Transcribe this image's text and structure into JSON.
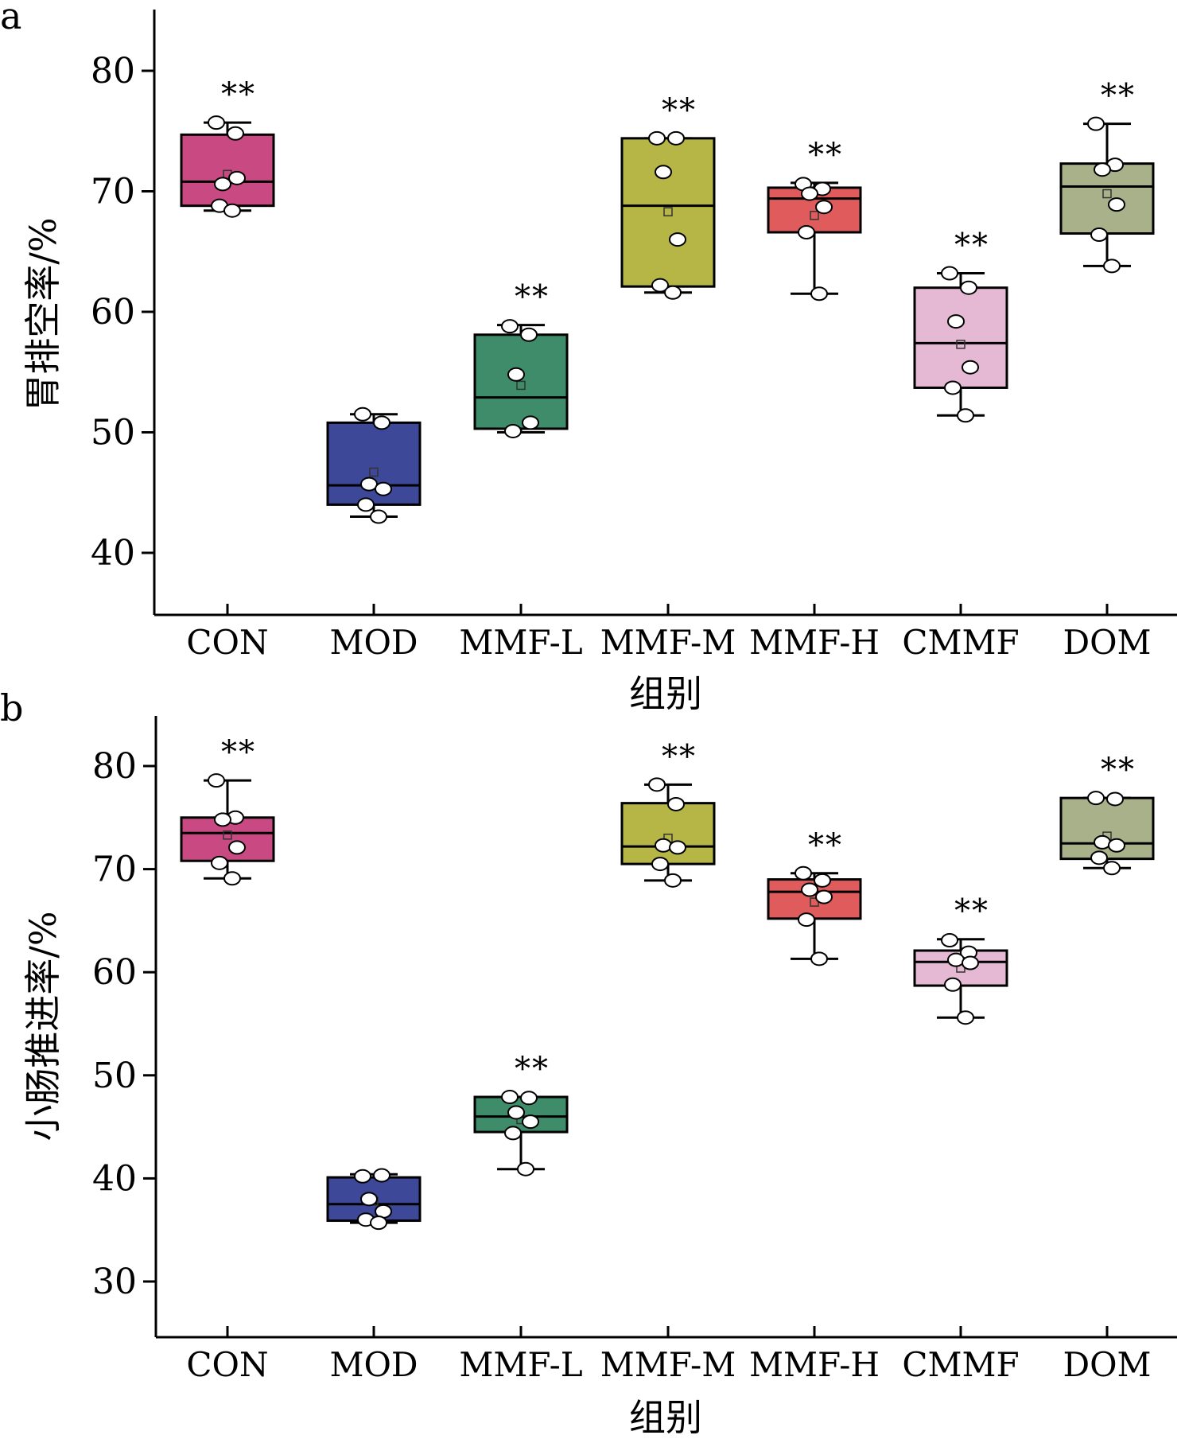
{
  "chart_data": [
    {
      "type": "box",
      "panel_label": "a",
      "xlabel": "组别",
      "ylabel": "胃排空率/%",
      "ylim": [
        35,
        85
      ],
      "yticks": [
        40,
        50,
        60,
        70,
        80
      ],
      "grid": false,
      "categories": [
        "CON",
        "MOD",
        "MMF-L",
        "MMF-M",
        "MMF-H",
        "CMMF",
        "DOM"
      ],
      "groups": [
        {
          "name": "CON",
          "color": "#c94a82",
          "whisker_low": 68.4,
          "q1": 68.8,
          "median": 70.8,
          "q3": 74.7,
          "whisker_high": 75.7,
          "mean": 71.4,
          "points": [
            75.7,
            74.8,
            70.6,
            71.1,
            68.8,
            68.4
          ],
          "sig": "**"
        },
        {
          "name": "MOD",
          "color": "#3d4899",
          "whisker_low": 43.0,
          "q1": 44.0,
          "median": 45.6,
          "q3": 50.8,
          "whisker_high": 51.5,
          "mean": 46.7,
          "points": [
            51.5,
            50.8,
            45.7,
            45.3,
            44.0,
            43.0
          ],
          "sig": ""
        },
        {
          "name": "MMF-L",
          "color": "#3f8c6b",
          "whisker_low": 50.0,
          "q1": 50.3,
          "median": 52.9,
          "q3": 58.1,
          "whisker_high": 58.9,
          "mean": 53.9,
          "points": [
            58.8,
            58.1,
            54.8,
            50.8,
            50.1
          ],
          "sig": "**"
        },
        {
          "name": "MMF-M",
          "color": "#b5b646",
          "whisker_low": 61.6,
          "q1": 62.1,
          "median": 68.8,
          "q3": 74.4,
          "whisker_high": 74.4,
          "mean": 68.3,
          "points": [
            74.4,
            74.4,
            71.6,
            66.0,
            62.2,
            61.6
          ],
          "sig": "**"
        },
        {
          "name": "MMF-H",
          "color": "#e05c5c",
          "whisker_low": 61.5,
          "q1": 66.6,
          "median": 69.4,
          "q3": 70.3,
          "whisker_high": 70.7,
          "mean": 68.0,
          "points": [
            70.6,
            70.2,
            69.8,
            68.7,
            66.6,
            61.5
          ],
          "sig": "**"
        },
        {
          "name": "CMMF",
          "color": "#e5b8d4",
          "whisker_low": 51.4,
          "q1": 53.7,
          "median": 57.4,
          "q3": 62.0,
          "whisker_high": 63.2,
          "mean": 57.3,
          "points": [
            63.2,
            62.0,
            59.2,
            55.4,
            53.7,
            51.4
          ],
          "sig": "**"
        },
        {
          "name": "DOM",
          "color": "#a9b18b",
          "whisker_low": 63.8,
          "q1": 66.5,
          "median": 70.4,
          "q3": 72.3,
          "whisker_high": 75.6,
          "mean": 69.8,
          "points": [
            75.6,
            72.2,
            71.8,
            68.9,
            66.4,
            63.8
          ],
          "sig": "**"
        }
      ]
    },
    {
      "type": "box",
      "panel_label": "b",
      "xlabel": "组别",
      "ylabel": "小肠推进率/%",
      "ylim": [
        25,
        85
      ],
      "yticks": [
        30,
        40,
        50,
        60,
        70,
        80
      ],
      "grid": false,
      "categories": [
        "CON",
        "MOD",
        "MMF-L",
        "MMF-M",
        "MMF-H",
        "CMMF",
        "DOM"
      ],
      "groups": [
        {
          "name": "CON",
          "color": "#c94a82",
          "whisker_low": 69.1,
          "q1": 70.8,
          "median": 73.5,
          "q3": 75.0,
          "whisker_high": 78.6,
          "mean": 73.3,
          "points": [
            78.6,
            75.0,
            74.8,
            72.1,
            70.6,
            69.1
          ],
          "sig": "**"
        },
        {
          "name": "MOD",
          "color": "#3d4899",
          "whisker_low": 35.7,
          "q1": 35.9,
          "median": 37.5,
          "q3": 40.1,
          "whisker_high": 40.4,
          "mean": 37.8,
          "points": [
            40.2,
            40.3,
            38.0,
            36.8,
            36.0,
            35.7
          ],
          "sig": ""
        },
        {
          "name": "MMF-L",
          "color": "#3f8c6b",
          "whisker_low": 40.9,
          "q1": 44.5,
          "median": 46.0,
          "q3": 47.9,
          "whisker_high": 47.9,
          "mean": 45.7,
          "points": [
            47.9,
            47.8,
            46.4,
            45.5,
            44.4,
            40.9
          ],
          "sig": "**"
        },
        {
          "name": "MMF-M",
          "color": "#b5b646",
          "whisker_low": 68.9,
          "q1": 70.5,
          "median": 72.2,
          "q3": 76.4,
          "whisker_high": 78.2,
          "mean": 73.0,
          "points": [
            78.2,
            76.3,
            72.3,
            72.1,
            70.5,
            68.9
          ],
          "sig": "**"
        },
        {
          "name": "MMF-H",
          "color": "#e05c5c",
          "whisker_low": 61.3,
          "q1": 65.2,
          "median": 67.8,
          "q3": 69.0,
          "whisker_high": 69.6,
          "mean": 66.8,
          "points": [
            69.6,
            68.9,
            68.0,
            67.3,
            65.1,
            61.3
          ],
          "sig": "**"
        },
        {
          "name": "CMMF",
          "color": "#e5b8d4",
          "whisker_low": 55.6,
          "q1": 58.7,
          "median": 61.0,
          "q3": 62.1,
          "whisker_high": 63.2,
          "mean": 60.4,
          "points": [
            63.1,
            61.9,
            61.2,
            60.9,
            58.8,
            55.6
          ],
          "sig": "**"
        },
        {
          "name": "DOM",
          "color": "#a9b18b",
          "whisker_low": 70.1,
          "q1": 71.0,
          "median": 72.5,
          "q3": 76.9,
          "whisker_high": 76.9,
          "mean": 73.2,
          "points": [
            76.9,
            76.8,
            72.6,
            72.3,
            71.1,
            70.1
          ],
          "sig": "**"
        }
      ]
    }
  ]
}
